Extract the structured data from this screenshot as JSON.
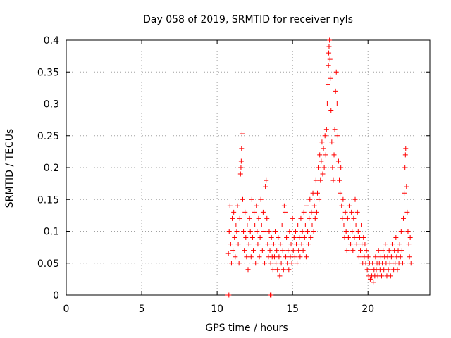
{
  "chart_data": {
    "type": "scatter",
    "title": "Day 058 of 2019, SRMTID for receiver nyls",
    "xlabel": "GPS time / hours",
    "ylabel": "SRMTID / TECUs",
    "xlim": [
      0,
      24.1
    ],
    "ylim": [
      0,
      0.4
    ],
    "x_ticks": [
      0,
      5,
      10,
      15,
      20
    ],
    "x_tick_labels": [
      "0",
      "5",
      "10",
      "15",
      "20"
    ],
    "y_ticks": [
      0,
      0.05,
      0.1,
      0.15,
      0.2,
      0.25,
      0.3,
      0.35,
      0.4
    ],
    "y_tick_labels": [
      "0",
      "0.05",
      "0.1",
      "0.15",
      "0.2",
      "0.25",
      "0.3",
      "0.35",
      "0.4"
    ],
    "grid": true,
    "legend": "none",
    "marker": "plus",
    "series": [
      {
        "color": "#ff0000",
        "points": [
          [
            10.72,
            0.0
          ],
          [
            10.78,
            0.0
          ],
          [
            13.52,
            0.0
          ],
          [
            13.58,
            0.0
          ],
          [
            10.75,
            0.065
          ],
          [
            10.8,
            0.1
          ],
          [
            10.85,
            0.14
          ],
          [
            10.9,
            0.08
          ],
          [
            10.95,
            0.05
          ],
          [
            11.0,
            0.12
          ],
          [
            11.05,
            0.07
          ],
          [
            11.1,
            0.13
          ],
          [
            11.15,
            0.09
          ],
          [
            11.2,
            0.06
          ],
          [
            11.25,
            0.11
          ],
          [
            11.3,
            0.1
          ],
          [
            11.35,
            0.14
          ],
          [
            11.4,
            0.08
          ],
          [
            11.45,
            0.05
          ],
          [
            11.5,
            0.12
          ],
          [
            11.55,
            0.19
          ],
          [
            11.58,
            0.2
          ],
          [
            11.6,
            0.21
          ],
          [
            11.62,
            0.23
          ],
          [
            11.65,
            0.253
          ],
          [
            11.7,
            0.15
          ],
          [
            11.75,
            0.1
          ],
          [
            11.8,
            0.07
          ],
          [
            11.85,
            0.13
          ],
          [
            11.9,
            0.09
          ],
          [
            11.95,
            0.06
          ],
          [
            12.0,
            0.11
          ],
          [
            12.05,
            0.04
          ],
          [
            12.1,
            0.08
          ],
          [
            12.15,
            0.12
          ],
          [
            12.2,
            0.1
          ],
          [
            12.25,
            0.06
          ],
          [
            12.3,
            0.15
          ],
          [
            12.35,
            0.09
          ],
          [
            12.4,
            0.07
          ],
          [
            12.45,
            0.13
          ],
          [
            12.5,
            0.11
          ],
          [
            12.55,
            0.05
          ],
          [
            12.6,
            0.14
          ],
          [
            12.65,
            0.1
          ],
          [
            12.7,
            0.08
          ],
          [
            12.75,
            0.12
          ],
          [
            12.8,
            0.06
          ],
          [
            12.85,
            0.09
          ],
          [
            12.9,
            0.15
          ],
          [
            12.95,
            0.11
          ],
          [
            13.0,
            0.07
          ],
          [
            13.05,
            0.13
          ],
          [
            13.1,
            0.1
          ],
          [
            13.15,
            0.05
          ],
          [
            13.2,
            0.17
          ],
          [
            13.25,
            0.18
          ],
          [
            13.3,
            0.12
          ],
          [
            13.35,
            0.08
          ],
          [
            13.4,
            0.06
          ],
          [
            13.45,
            0.1
          ],
          [
            13.5,
            0.07
          ],
          [
            13.55,
            0.05
          ],
          [
            13.6,
            0.09
          ],
          [
            13.65,
            0.06
          ],
          [
            13.7,
            0.04
          ],
          [
            13.75,
            0.08
          ],
          [
            13.8,
            0.06
          ],
          [
            13.85,
            0.1
          ],
          [
            13.9,
            0.05
          ],
          [
            13.95,
            0.07
          ],
          [
            14.0,
            0.04
          ],
          [
            14.05,
            0.09
          ],
          [
            14.1,
            0.06
          ],
          [
            14.15,
            0.03
          ],
          [
            14.2,
            0.08
          ],
          [
            14.25,
            0.05
          ],
          [
            14.3,
            0.11
          ],
          [
            14.35,
            0.07
          ],
          [
            14.4,
            0.04
          ],
          [
            14.45,
            0.14
          ],
          [
            14.5,
            0.13
          ],
          [
            14.55,
            0.06
          ],
          [
            14.6,
            0.09
          ],
          [
            14.65,
            0.05
          ],
          [
            14.7,
            0.07
          ],
          [
            14.75,
            0.04
          ],
          [
            14.8,
            0.1
          ],
          [
            14.85,
            0.06
          ],
          [
            14.9,
            0.08
          ],
          [
            14.95,
            0.05
          ],
          [
            15.0,
            0.12
          ],
          [
            15.05,
            0.07
          ],
          [
            15.1,
            0.09
          ],
          [
            15.15,
            0.06
          ],
          [
            15.2,
            0.1
          ],
          [
            15.25,
            0.08
          ],
          [
            15.3,
            0.05
          ],
          [
            15.35,
            0.11
          ],
          [
            15.4,
            0.07
          ],
          [
            15.45,
            0.09
          ],
          [
            15.5,
            0.06
          ],
          [
            15.55,
            0.12
          ],
          [
            15.6,
            0.08
          ],
          [
            15.65,
            0.1
          ],
          [
            15.7,
            0.07
          ],
          [
            15.75,
            0.13
          ],
          [
            15.8,
            0.09
          ],
          [
            15.85,
            0.11
          ],
          [
            15.9,
            0.06
          ],
          [
            15.95,
            0.14
          ],
          [
            16.0,
            0.1
          ],
          [
            16.05,
            0.08
          ],
          [
            16.1,
            0.12
          ],
          [
            16.15,
            0.15
          ],
          [
            16.2,
            0.09
          ],
          [
            16.25,
            0.13
          ],
          [
            16.3,
            0.11
          ],
          [
            16.35,
            0.16
          ],
          [
            16.4,
            0.1
          ],
          [
            16.45,
            0.14
          ],
          [
            16.5,
            0.12
          ],
          [
            16.55,
            0.18
          ],
          [
            16.6,
            0.13
          ],
          [
            16.65,
            0.16
          ],
          [
            16.7,
            0.2
          ],
          [
            16.75,
            0.15
          ],
          [
            16.8,
            0.22
          ],
          [
            16.85,
            0.18
          ],
          [
            16.9,
            0.21
          ],
          [
            16.95,
            0.24
          ],
          [
            17.0,
            0.19
          ],
          [
            17.05,
            0.23
          ],
          [
            17.1,
            0.2
          ],
          [
            17.15,
            0.25
          ],
          [
            17.2,
            0.22
          ],
          [
            17.25,
            0.26
          ],
          [
            17.3,
            0.3
          ],
          [
            17.35,
            0.33
          ],
          [
            17.38,
            0.36
          ],
          [
            17.4,
            0.38
          ],
          [
            17.42,
            0.39
          ],
          [
            17.45,
            0.4
          ],
          [
            17.48,
            0.37
          ],
          [
            17.5,
            0.34
          ],
          [
            17.55,
            0.29
          ],
          [
            17.6,
            0.24
          ],
          [
            17.65,
            0.2
          ],
          [
            17.7,
            0.18
          ],
          [
            17.75,
            0.22
          ],
          [
            17.8,
            0.26
          ],
          [
            17.85,
            0.32
          ],
          [
            17.9,
            0.35
          ],
          [
            17.95,
            0.3
          ],
          [
            18.0,
            0.25
          ],
          [
            18.05,
            0.21
          ],
          [
            18.1,
            0.18
          ],
          [
            18.15,
            0.16
          ],
          [
            18.2,
            0.2
          ],
          [
            18.25,
            0.14
          ],
          [
            18.3,
            0.12
          ],
          [
            18.35,
            0.15
          ],
          [
            18.4,
            0.11
          ],
          [
            18.45,
            0.09
          ],
          [
            18.5,
            0.13
          ],
          [
            18.55,
            0.1
          ],
          [
            18.6,
            0.07
          ],
          [
            18.65,
            0.12
          ],
          [
            18.7,
            0.09
          ],
          [
            18.75,
            0.14
          ],
          [
            18.8,
            0.11
          ],
          [
            18.85,
            0.08
          ],
          [
            18.9,
            0.13
          ],
          [
            18.95,
            0.1
          ],
          [
            19.0,
            0.07
          ],
          [
            19.05,
            0.12
          ],
          [
            19.1,
            0.09
          ],
          [
            19.15,
            0.15
          ],
          [
            19.2,
            0.11
          ],
          [
            19.25,
            0.08
          ],
          [
            19.3,
            0.13
          ],
          [
            19.35,
            0.1
          ],
          [
            19.4,
            0.06
          ],
          [
            19.45,
            0.09
          ],
          [
            19.5,
            0.07
          ],
          [
            19.55,
            0.11
          ],
          [
            19.6,
            0.08
          ],
          [
            19.65,
            0.05
          ],
          [
            19.7,
            0.09
          ],
          [
            19.75,
            0.06
          ],
          [
            19.8,
            0.08
          ],
          [
            19.85,
            0.05
          ],
          [
            19.9,
            0.07
          ],
          [
            19.95,
            0.04
          ],
          [
            20.0,
            0.06
          ],
          [
            20.05,
            0.03
          ],
          [
            20.1,
            0.05
          ],
          [
            20.15,
            0.025
          ],
          [
            20.2,
            0.04
          ],
          [
            20.25,
            0.03
          ],
          [
            20.3,
            0.05
          ],
          [
            20.35,
            0.02
          ],
          [
            20.4,
            0.04
          ],
          [
            20.45,
            0.03
          ],
          [
            20.5,
            0.06
          ],
          [
            20.55,
            0.04
          ],
          [
            20.6,
            0.05
          ],
          [
            20.65,
            0.03
          ],
          [
            20.7,
            0.07
          ],
          [
            20.75,
            0.05
          ],
          [
            20.8,
            0.04
          ],
          [
            20.85,
            0.06
          ],
          [
            20.9,
            0.03
          ],
          [
            20.95,
            0.05
          ],
          [
            21.0,
            0.07
          ],
          [
            21.05,
            0.04
          ],
          [
            21.1,
            0.06
          ],
          [
            21.15,
            0.08
          ],
          [
            21.2,
            0.05
          ],
          [
            21.25,
            0.03
          ],
          [
            21.3,
            0.06
          ],
          [
            21.35,
            0.04
          ],
          [
            21.4,
            0.07
          ],
          [
            21.45,
            0.05
          ],
          [
            21.5,
            0.03
          ],
          [
            21.55,
            0.06
          ],
          [
            21.6,
            0.08
          ],
          [
            21.65,
            0.05
          ],
          [
            21.7,
            0.04
          ],
          [
            21.75,
            0.07
          ],
          [
            21.8,
            0.05
          ],
          [
            21.85,
            0.09
          ],
          [
            21.9,
            0.06
          ],
          [
            21.95,
            0.04
          ],
          [
            22.0,
            0.07
          ],
          [
            22.05,
            0.05
          ],
          [
            22.1,
            0.08
          ],
          [
            22.15,
            0.06
          ],
          [
            22.2,
            0.1
          ],
          [
            22.25,
            0.07
          ],
          [
            22.3,
            0.05
          ],
          [
            22.35,
            0.12
          ],
          [
            22.4,
            0.16
          ],
          [
            22.45,
            0.2
          ],
          [
            22.48,
            0.22
          ],
          [
            22.5,
            0.23
          ],
          [
            22.55,
            0.17
          ],
          [
            22.6,
            0.13
          ],
          [
            22.65,
            0.1
          ],
          [
            22.7,
            0.08
          ],
          [
            22.75,
            0.06
          ],
          [
            22.8,
            0.09
          ],
          [
            22.85,
            0.05
          ]
        ]
      }
    ]
  }
}
